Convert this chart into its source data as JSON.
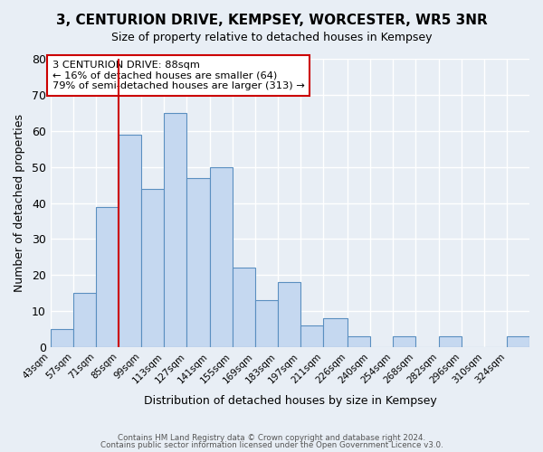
{
  "title": "3, CENTURION DRIVE, KEMPSEY, WORCESTER, WR5 3NR",
  "subtitle": "Size of property relative to detached houses in Kempsey",
  "xlabel": "Distribution of detached houses by size in Kempsey",
  "ylabel": "Number of detached properties",
  "bar_values": [
    5,
    15,
    39,
    59,
    44,
    65,
    47,
    50,
    22,
    13,
    18,
    6,
    8,
    3,
    0,
    3,
    0,
    3,
    0,
    0,
    3
  ],
  "bin_labels": [
    "43sqm",
    "57sqm",
    "71sqm",
    "85sqm",
    "99sqm",
    "113sqm",
    "127sqm",
    "141sqm",
    "155sqm",
    "169sqm",
    "183sqm",
    "197sqm",
    "211sqm",
    "226sqm",
    "240sqm",
    "254sqm",
    "268sqm",
    "282sqm",
    "296sqm",
    "310sqm",
    "324sqm"
  ],
  "bin_edges": [
    43,
    57,
    71,
    85,
    99,
    113,
    127,
    141,
    155,
    169,
    183,
    197,
    211,
    226,
    240,
    254,
    268,
    282,
    296,
    310,
    324,
    338
  ],
  "bar_color": "#c5d8f0",
  "bar_edge_color": "#5a8fc0",
  "vline_x": 85,
  "vline_color": "#cc0000",
  "annotation_text": "3 CENTURION DRIVE: 88sqm\n← 16% of detached houses are smaller (64)\n79% of semi-detached houses are larger (313) →",
  "annotation_box_edgecolor": "#cc0000",
  "ylim": [
    0,
    80
  ],
  "yticks": [
    0,
    10,
    20,
    30,
    40,
    50,
    60,
    70,
    80
  ],
  "bg_color": "#e8eef5",
  "grid_color": "#ffffff",
  "footer1": "Contains HM Land Registry data © Crown copyright and database right 2024.",
  "footer2": "Contains public sector information licensed under the Open Government Licence v3.0."
}
